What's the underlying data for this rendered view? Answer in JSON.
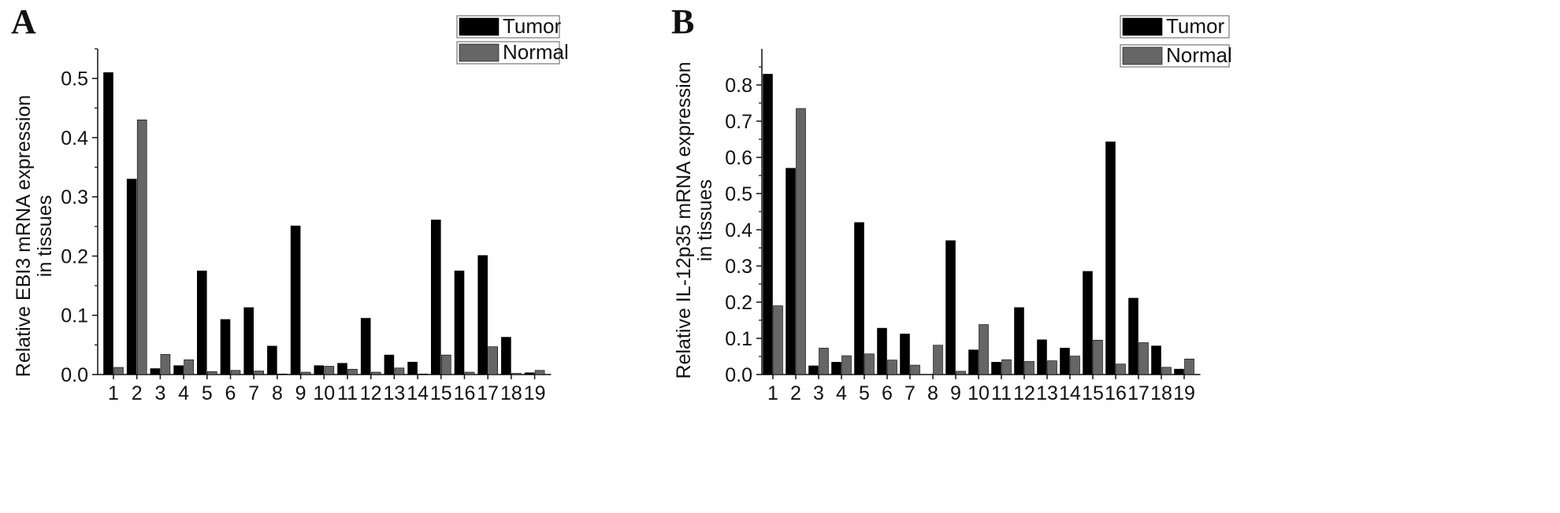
{
  "panels": [
    {
      "letter": "A",
      "chart_data": {
        "type": "bar",
        "categories": [
          "1",
          "2",
          "3",
          "4",
          "5",
          "6",
          "7",
          "8",
          "9",
          "10",
          "11",
          "12",
          "13",
          "14",
          "15",
          "16",
          "17",
          "18",
          "19"
        ],
        "series": [
          {
            "name": "Tumor",
            "color": "#000000",
            "values": [
              0.51,
              0.33,
              0.01,
              0.015,
              0.175,
              0.093,
              0.113,
              0.048,
              0.251,
              0.015,
              0.019,
              0.095,
              0.033,
              0.021,
              0.261,
              0.175,
              0.201,
              0.063,
              0.003
            ]
          },
          {
            "name": "Normal",
            "color": "#666666",
            "values": [
              0.012,
              0.43,
              0.034,
              0.025,
              0.005,
              0.007,
              0.006,
              0.001,
              0.004,
              0.014,
              0.009,
              0.004,
              0.011,
              0.001,
              0.033,
              0.004,
              0.047,
              0.002,
              0.007
            ]
          }
        ],
        "ylabel_line1": "Relative EBI3 mRNA expression",
        "ylabel_line2": "in tissues",
        "xlabel": "",
        "ylim": [
          0,
          0.55
        ],
        "yticks": [
          0.0,
          0.1,
          0.2,
          0.3,
          0.4,
          0.5
        ],
        "ytick_labels": [
          "0.0",
          "0.1",
          "0.2",
          "0.3",
          "0.4",
          "0.5"
        ],
        "grid": false,
        "legend_position": "top-right"
      }
    },
    {
      "letter": "B",
      "chart_data": {
        "type": "bar",
        "categories": [
          "1",
          "2",
          "3",
          "4",
          "5",
          "6",
          "7",
          "8",
          "9",
          "10",
          "11",
          "12",
          "13",
          "14",
          "15",
          "16",
          "17",
          "18",
          "19"
        ],
        "series": [
          {
            "name": "Tumor",
            "color": "#000000",
            "values": [
              0.83,
              0.57,
              0.024,
              0.034,
              0.42,
              0.128,
              0.112,
              0.0,
              0.37,
              0.068,
              0.034,
              0.185,
              0.096,
              0.073,
              0.285,
              0.643,
              0.211,
              0.079,
              0.015
            ]
          },
          {
            "name": "Normal",
            "color": "#666666",
            "values": [
              0.19,
              0.735,
              0.073,
              0.052,
              0.057,
              0.04,
              0.026,
              0.081,
              0.009,
              0.138,
              0.041,
              0.036,
              0.038,
              0.051,
              0.095,
              0.029,
              0.088,
              0.02,
              0.043
            ]
          }
        ],
        "ylabel_line1": "Relative IL-12p35 mRNA expression",
        "ylabel_line2": "in tissues",
        "xlabel": "",
        "ylim": [
          0,
          0.9
        ],
        "yticks": [
          0.0,
          0.1,
          0.2,
          0.3,
          0.4,
          0.5,
          0.6,
          0.7,
          0.8
        ],
        "ytick_labels": [
          "0.0",
          "0.1",
          "0.2",
          "0.3",
          "0.4",
          "0.5",
          "0.6",
          "0.7",
          "0.8"
        ],
        "grid": false,
        "legend_position": "top-right"
      }
    }
  ]
}
